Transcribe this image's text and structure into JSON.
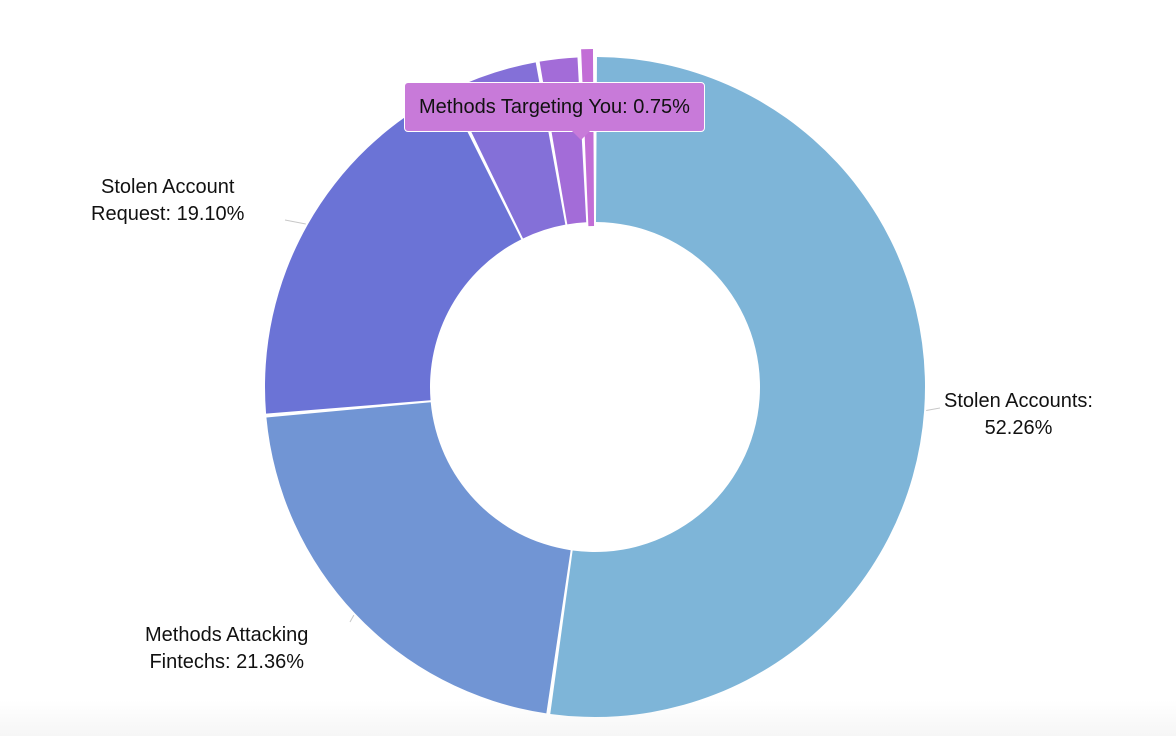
{
  "chart_data": {
    "type": "pie",
    "variant": "donut",
    "title": "",
    "legend": "none",
    "slices": [
      {
        "key": "stolen-accounts",
        "label_lines": [
          "Stolen Accounts:",
          "52.26%"
        ],
        "name": "Stolen Accounts",
        "value": 52.26,
        "color": "#7eb5d8"
      },
      {
        "key": "methods-attacking-fintechs",
        "label_lines": [
          "Methods Attacking",
          "Fintechs: 21.36%"
        ],
        "name": "Methods Attacking Fintechs",
        "value": 21.36,
        "color": "#7195d4"
      },
      {
        "key": "stolen-account-request",
        "label_lines": [
          "Stolen Account",
          "Request: 19.10%"
        ],
        "name": "Stolen Account Request",
        "value": 19.1,
        "color": "#6b73d6"
      },
      {
        "key": "slice-4",
        "label_lines": [],
        "name": "",
        "value": 4.5,
        "color": "#8470d8"
      },
      {
        "key": "slice-5",
        "label_lines": [],
        "name": "",
        "value": 2.03,
        "color": "#a36cd8"
      },
      {
        "key": "methods-targeting-you",
        "label_lines": [],
        "name": "Methods Targeting You",
        "value": 0.75,
        "color": "#c26ed6"
      }
    ],
    "tooltip": {
      "text": "Methods Targeting You: 0.75%",
      "slice": "methods-targeting-you"
    }
  }
}
